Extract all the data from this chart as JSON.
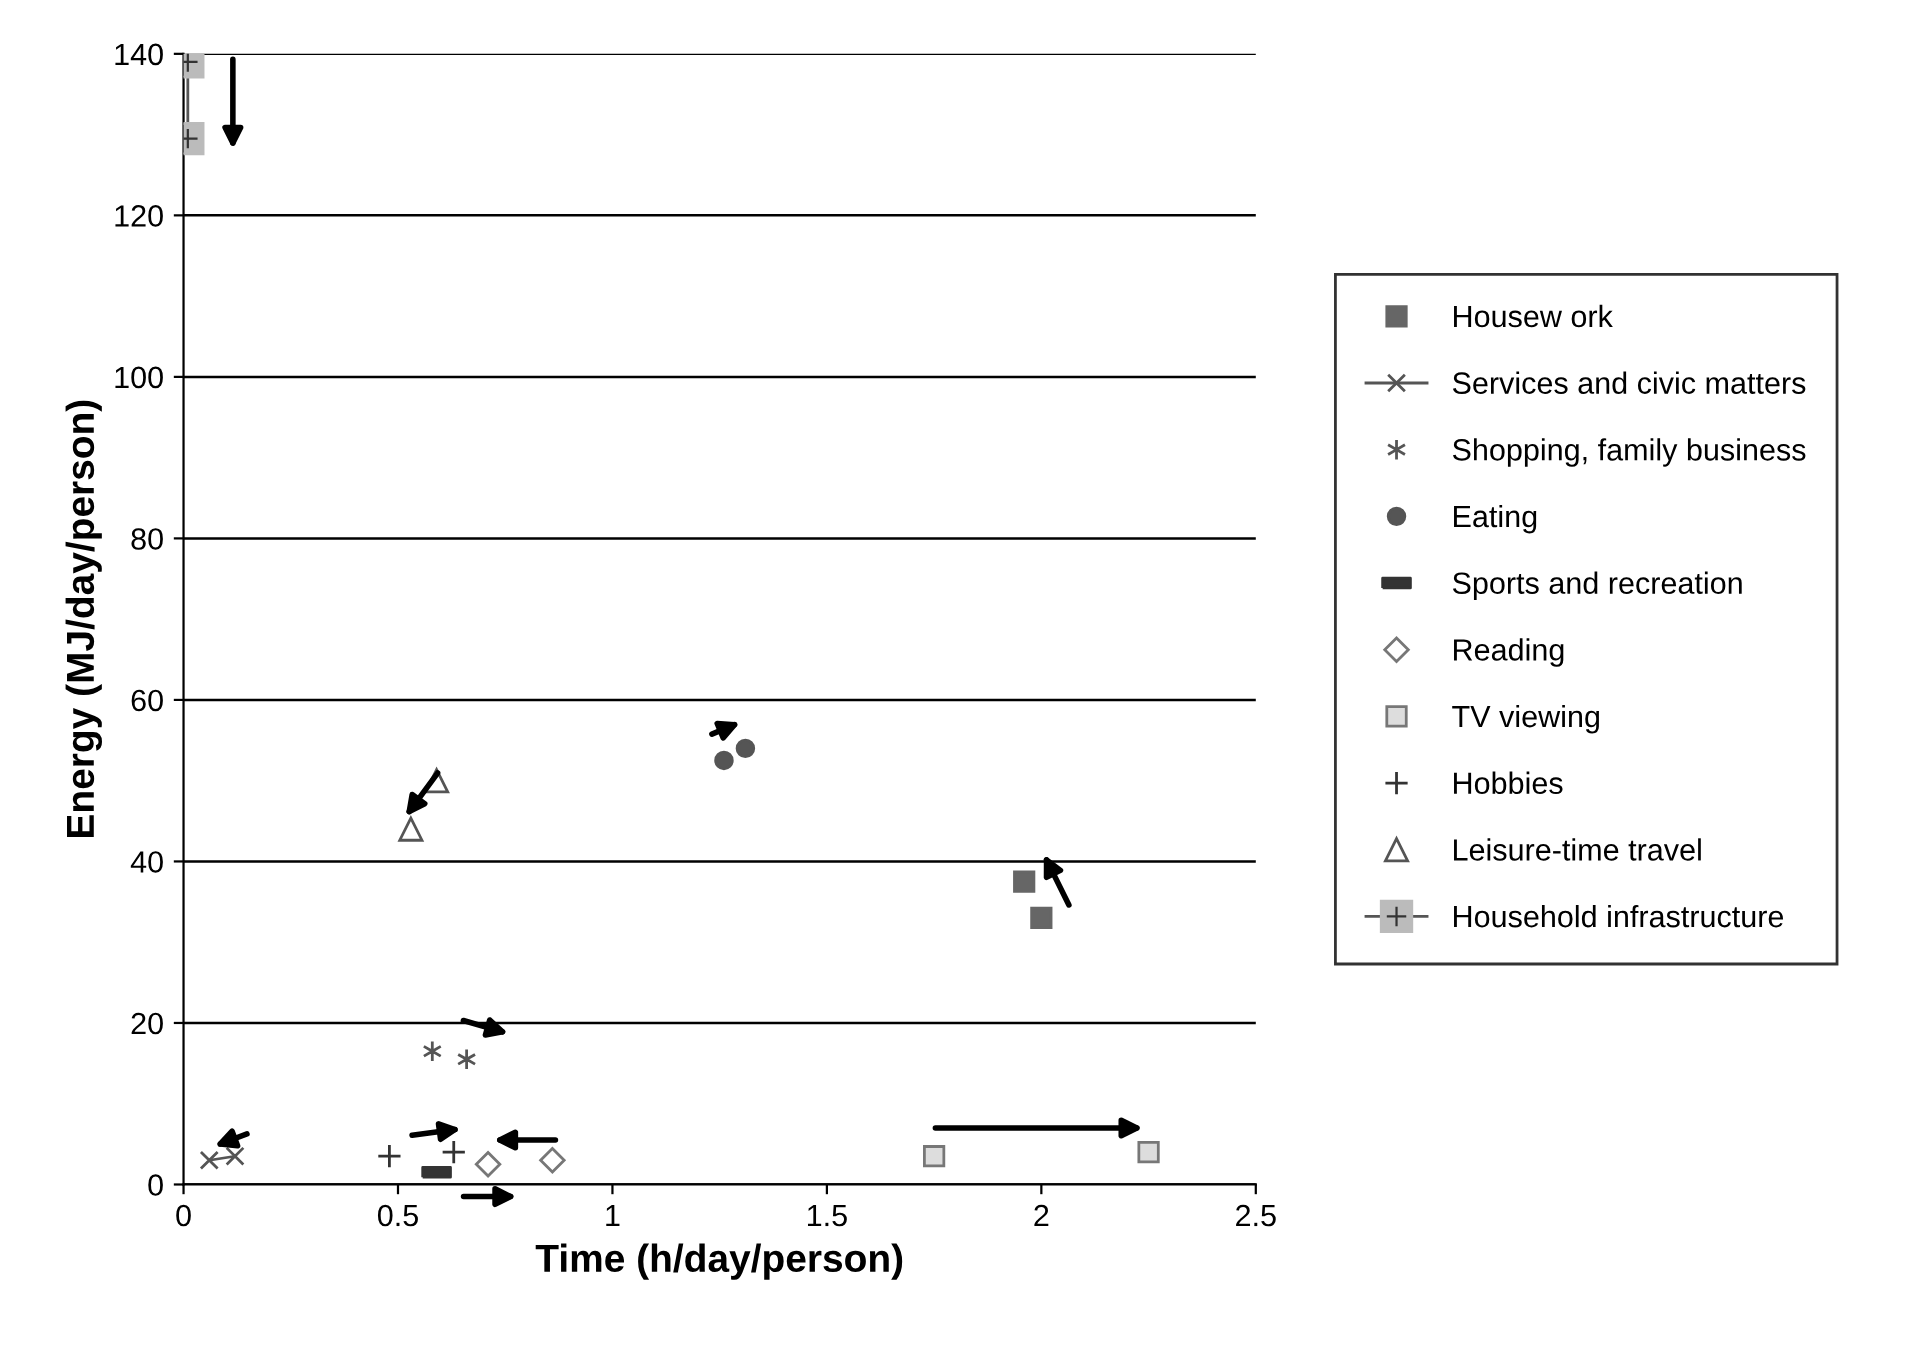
{
  "chart_data": {
    "type": "scatter",
    "xlabel": "Time (h/day/person)",
    "ylabel": "Energy (MJ/day/person)",
    "xlim": [
      0,
      2.5
    ],
    "xticks": [
      0,
      0.5,
      1,
      1.5,
      2,
      2.5
    ],
    "ylim": [
      0,
      140
    ],
    "yticks": [
      0,
      20,
      40,
      60,
      80,
      100,
      120,
      140
    ],
    "grid": "y",
    "legend": "right",
    "series": [
      {
        "name": "Housew ork",
        "color": "#666666",
        "marker": "square",
        "x": [
          1.96,
          2.0
        ],
        "values": [
          37.5,
          33
        ]
      },
      {
        "name": "Services and civic matters",
        "color": "#555555",
        "type": "line",
        "marker": "cross",
        "line_style": "solid",
        "x": [
          0.06,
          0.12
        ],
        "values": [
          3,
          3.5
        ]
      },
      {
        "name": "Shopping, family business",
        "color": "#555555",
        "marker": "cross",
        "x": [
          0.58,
          0.66
        ],
        "values": [
          16.5,
          15.5
        ]
      },
      {
        "name": "Eating",
        "color": "#555555",
        "marker": "circle",
        "x": [
          1.26,
          1.31
        ],
        "values": [
          52.5,
          54
        ]
      },
      {
        "name": "Sports and recreation",
        "color": "#333333",
        "x": [
          0.59
        ],
        "values": [
          1.5
        ]
      },
      {
        "name": "Reading",
        "color": "#777777",
        "marker": "diamond",
        "x": [
          0.71,
          0.86
        ],
        "values": [
          2.5,
          3
        ]
      },
      {
        "name": "TV viewing",
        "color": "#777777",
        "marker": "square",
        "x": [
          1.75,
          2.25
        ],
        "values": [
          3.5,
          4
        ]
      },
      {
        "name": "Hobbies",
        "color": "#333333",
        "marker": "cross",
        "x": [
          0.48,
          0.63
        ],
        "values": [
          3.5,
          4
        ]
      },
      {
        "name": "Leisure-time travel",
        "color": "#555555",
        "marker": "triangle",
        "x": [
          0.53,
          0.59
        ],
        "values": [
          44,
          50
        ]
      },
      {
        "name": "Household infrastructure",
        "color": "#bbbbbb",
        "type": "line",
        "marker": "square",
        "line_style": "solid",
        "x": [
          0.01,
          0.01
        ],
        "values": [
          139,
          129.5
        ]
      }
    ]
  }
}
